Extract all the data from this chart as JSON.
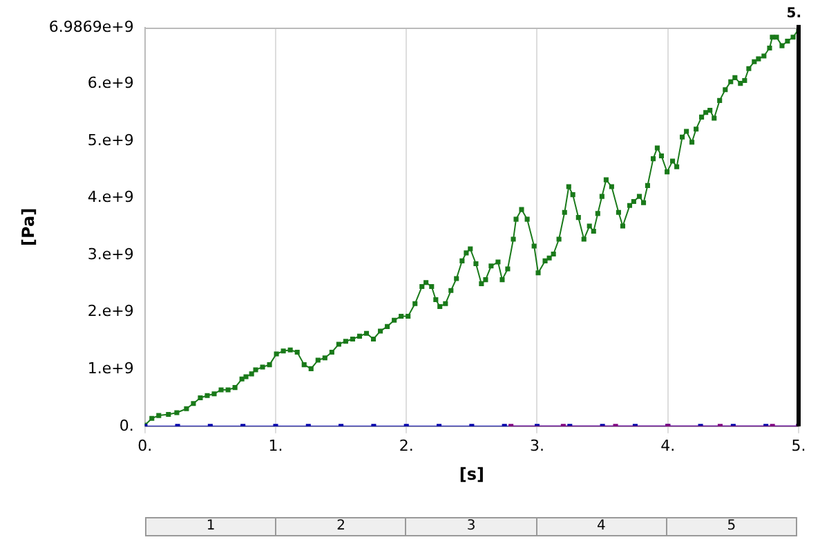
{
  "chart_data": {
    "type": "line",
    "xlabel": "[s]",
    "ylabel": "[Pa]",
    "xlim": [
      0,
      5
    ],
    "xticks": [
      {
        "value": 0,
        "label": "0."
      },
      {
        "value": 1,
        "label": "1."
      },
      {
        "value": 2,
        "label": "2."
      },
      {
        "value": 3,
        "label": "3."
      },
      {
        "value": 4,
        "label": "4."
      },
      {
        "value": 5,
        "label": "5."
      }
    ],
    "ylim": [
      0,
      6986900000
    ],
    "yticks": [
      {
        "value": 0,
        "label": "0."
      },
      {
        "value": 1000000000,
        "label": "1.e+9"
      },
      {
        "value": 2000000000,
        "label": "2.e+9"
      },
      {
        "value": 3000000000,
        "label": "3.e+9"
      },
      {
        "value": 4000000000,
        "label": "4.e+9"
      },
      {
        "value": 5000000000,
        "label": "5.e+9"
      },
      {
        "value": 6000000000,
        "label": "6.e+9"
      },
      {
        "value": 6986900000,
        "label": "6.9869e+9"
      }
    ],
    "grid": "x",
    "marker": "square",
    "line_style": "solid",
    "legend": false,
    "series": [
      {
        "color": "#800080",
        "x": [
          2.8,
          3.2,
          3.6,
          4.0,
          4.4,
          4.8,
          5.0
        ],
        "values": [
          0,
          0,
          0,
          0,
          0,
          0,
          0
        ]
      },
      {
        "color": "#0000aa",
        "x": [
          0,
          0.25,
          0.5,
          0.75,
          1,
          1.25,
          1.5,
          1.75,
          2,
          2.25,
          2.5,
          2.75,
          3,
          3.25,
          3.5,
          3.75,
          4,
          4.25,
          4.5,
          4.75,
          5
        ],
        "values": [
          0,
          0,
          0,
          0,
          0,
          0,
          0,
          0,
          0,
          0,
          0,
          0,
          0,
          0,
          0,
          0,
          0,
          0,
          0,
          0,
          0
        ]
      },
      {
        "color": "#1a7a1a",
        "x": [
          0,
          0.053,
          0.106,
          0.18,
          0.244,
          0.318,
          0.371,
          0.424,
          0.477,
          0.53,
          0.583,
          0.636,
          0.689,
          0.742,
          0.773,
          0.816,
          0.847,
          0.9,
          0.953,
          1.006,
          1.059,
          1.112,
          1.165,
          1.218,
          1.271,
          1.324,
          1.377,
          1.43,
          1.483,
          1.536,
          1.589,
          1.642,
          1.695,
          1.748,
          1.801,
          1.854,
          1.907,
          1.96,
          2.013,
          2.066,
          2.119,
          2.15,
          2.193,
          2.225,
          2.256,
          2.299,
          2.341,
          2.383,
          2.426,
          2.458,
          2.489,
          2.532,
          2.574,
          2.606,
          2.648,
          2.701,
          2.733,
          2.775,
          2.818,
          2.839,
          2.881,
          2.924,
          2.977,
          3.008,
          3.061,
          3.093,
          3.125,
          3.167,
          3.21,
          3.242,
          3.273,
          3.316,
          3.358,
          3.4,
          3.432,
          3.464,
          3.496,
          3.528,
          3.57,
          3.623,
          3.655,
          3.708,
          3.739,
          3.782,
          3.814,
          3.845,
          3.888,
          3.919,
          3.951,
          3.994,
          4.036,
          4.068,
          4.11,
          4.142,
          4.184,
          4.216,
          4.258,
          4.29,
          4.322,
          4.354,
          4.396,
          4.439,
          4.481,
          4.513,
          4.555,
          4.587,
          4.619,
          4.661,
          4.693,
          4.735,
          4.778,
          4.799,
          4.831,
          4.873,
          4.915,
          4.958,
          5
        ],
        "values": [
          20000000.0,
          140000000.0,
          190000000.0,
          210000000.0,
          240000000.0,
          310000000.0,
          400000000.0,
          500000000.0,
          540000000.0,
          570000000.0,
          640000000.0,
          640000000.0,
          680000000.0,
          830000000.0,
          870000000.0,
          920000000.0,
          990000000.0,
          1040000000.0,
          1080000000.0,
          1270000000.0,
          1320000000.0,
          1340000000.0,
          1300000000.0,
          1080000000.0,
          1010000000.0,
          1160000000.0,
          1200000000.0,
          1300000000.0,
          1440000000.0,
          1490000000.0,
          1530000000.0,
          1580000000.0,
          1630000000.0,
          1530000000.0,
          1670000000.0,
          1750000000.0,
          1860000000.0,
          1930000000.0,
          1930000000.0,
          2150000000.0,
          2450000000.0,
          2520000000.0,
          2450000000.0,
          2220000000.0,
          2100000000.0,
          2150000000.0,
          2380000000.0,
          2590000000.0,
          2900000000.0,
          3040000000.0,
          3110000000.0,
          2850000000.0,
          2500000000.0,
          2570000000.0,
          2810000000.0,
          2880000000.0,
          2570000000.0,
          2760000000.0,
          3280000000.0,
          3630000000.0,
          3800000000.0,
          3630000000.0,
          3160000000.0,
          2690000000.0,
          2900000000.0,
          2950000000.0,
          3020000000.0,
          3280000000.0,
          3750000000.0,
          4200000000.0,
          4060000000.0,
          3660000000.0,
          3280000000.0,
          3510000000.0,
          3420000000.0,
          3730000000.0,
          4030000000.0,
          4320000000.0,
          4200000000.0,
          3750000000.0,
          3510000000.0,
          3870000000.0,
          3940000000.0,
          4030000000.0,
          3920000000.0,
          4220000000.0,
          4690000000.0,
          4880000000.0,
          4740000000.0,
          4460000000.0,
          4650000000.0,
          4550000000.0,
          5070000000.0,
          5170000000.0,
          4980000000.0,
          5210000000.0,
          5420000000.0,
          5500000000.0,
          5540000000.0,
          5400000000.0,
          5710000000.0,
          5900000000.0,
          6040000000.0,
          6110000000.0,
          6010000000.0,
          6060000000.0,
          6270000000.0,
          6390000000.0,
          6440000000.0,
          6490000000.0,
          6630000000.0,
          6820000000.0,
          6820000000.0,
          6670000000.0,
          6750000000.0,
          6820000000.0,
          6960000000.0
        ]
      }
    ],
    "ref_lines": [
      {
        "axis": "x",
        "value": 5,
        "label": "5.",
        "color": "#000000"
      }
    ],
    "annotations": [
      "1",
      "2",
      "3",
      "4",
      "5"
    ]
  }
}
